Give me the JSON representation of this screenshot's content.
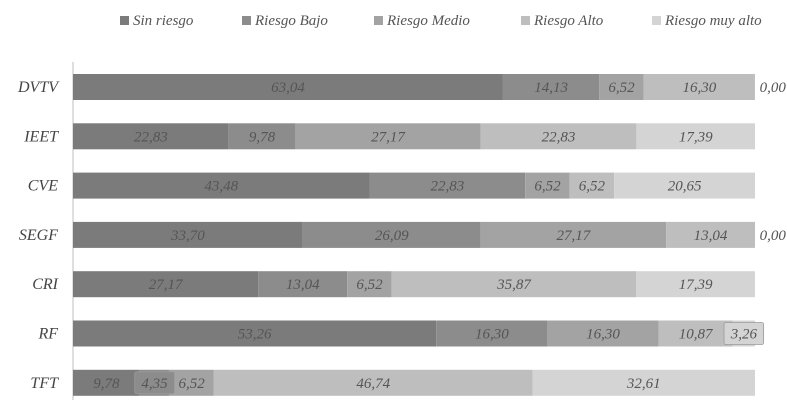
{
  "chart_data": {
    "type": "bar",
    "orientation": "horizontal",
    "stacked": true,
    "categories": [
      "DVTV",
      "IEET",
      "CVE",
      "SEGF",
      "CRI",
      "RF",
      "TFT"
    ],
    "series": [
      {
        "name": "Sin riesgo",
        "color": "#7b7b7b",
        "values": [
          63.04,
          22.83,
          43.48,
          33.7,
          27.17,
          53.26,
          9.78
        ],
        "labels": [
          "63,04",
          "22,83",
          "43,48",
          "33,70",
          "27,17",
          "53,26",
          "9,78"
        ]
      },
      {
        "name": "Riesgo Bajo",
        "color": "#8c8c8c",
        "values": [
          14.13,
          9.78,
          22.83,
          26.09,
          13.04,
          16.3,
          4.35
        ],
        "labels": [
          "14,13",
          "9,78",
          "22,83",
          "26,09",
          "13,04",
          "16,30",
          "4,35"
        ]
      },
      {
        "name": "Riesgo Medio",
        "color": "#a3a3a3",
        "values": [
          6.52,
          27.17,
          6.52,
          27.17,
          6.52,
          16.3,
          6.52
        ],
        "labels": [
          "6,52",
          "27,17",
          "6,52",
          "27,17",
          "6,52",
          "16,30",
          "6,52"
        ]
      },
      {
        "name": "Riesgo Alto",
        "color": "#bebebe",
        "values": [
          16.3,
          22.83,
          6.52,
          13.04,
          35.87,
          10.87,
          46.74
        ],
        "labels": [
          "16,30",
          "22,83",
          "6,52",
          "13,04",
          "35,87",
          "10,87",
          "46,74"
        ]
      },
      {
        "name": "Riesgo muy alto",
        "color": "#d4d4d4",
        "values": [
          0.0,
          17.39,
          20.65,
          0.0,
          17.39,
          3.26,
          32.61
        ],
        "labels": [
          "0,00",
          "17,39",
          "20,65",
          "0,00",
          "17,39",
          "3,26",
          "32,61"
        ]
      }
    ],
    "xlim": [
      0,
      100
    ],
    "grid": false,
    "legend_position": "top"
  }
}
